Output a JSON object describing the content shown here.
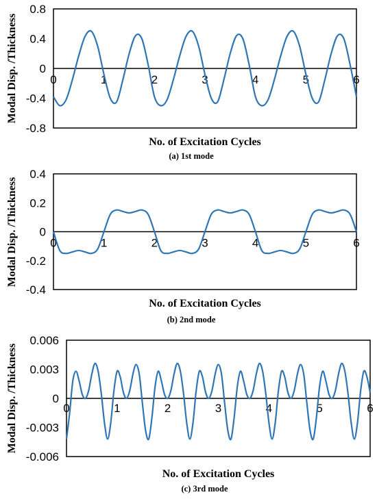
{
  "chart_data": [
    {
      "type": "line",
      "xlabel": "No. of Excitation Cycles",
      "ylabel": "Modal Disp. /Thickness",
      "caption": "(a) 1st mode",
      "xlim": [
        0,
        6
      ],
      "ylim": [
        -0.8,
        0.8
      ],
      "xticks": [
        "0",
        "1",
        "2",
        "3",
        "4",
        "5",
        "6"
      ],
      "yticks": [
        "0.8",
        "0.4",
        "0",
        "-0.4",
        "-0.8"
      ],
      "grid": false,
      "line_color": "#2e75b6",
      "series": [
        {
          "x": [
            0,
            0.125,
            0.25,
            0.375,
            0.5,
            0.625,
            0.75,
            0.875,
            1,
            1.125,
            1.25,
            1.375,
            1.5,
            1.625,
            1.75,
            1.875,
            2,
            2.125,
            2.25,
            2.375,
            2.5,
            2.625,
            2.75,
            2.875,
            3,
            3.125,
            3.25,
            3.375,
            3.5,
            3.625,
            3.75,
            3.875,
            4,
            4.125,
            4.25,
            4.375,
            4.5,
            4.625,
            4.75,
            4.875,
            5,
            5.125,
            5.25,
            5.375,
            5.5,
            5.625,
            5.75,
            5.875,
            6
          ],
          "y": [
            -0.38,
            -0.5,
            -0.42,
            -0.15,
            0.17,
            0.43,
            0.5,
            0.3,
            -0.08,
            -0.4,
            -0.45,
            -0.15,
            0.2,
            0.44,
            0.4,
            0.05,
            -0.38,
            -0.5,
            -0.42,
            -0.15,
            0.17,
            0.43,
            0.5,
            0.3,
            -0.08,
            -0.4,
            -0.45,
            -0.15,
            0.2,
            0.44,
            0.4,
            0.05,
            -0.38,
            -0.5,
            -0.42,
            -0.15,
            0.17,
            0.43,
            0.5,
            0.3,
            -0.08,
            -0.4,
            -0.45,
            -0.15,
            0.2,
            0.44,
            0.4,
            0.05,
            -0.38
          ]
        }
      ]
    },
    {
      "type": "line",
      "xlabel": "No. of Excitation Cycles",
      "ylabel": "Modal Disp. /Thickness",
      "caption": "(b) 2nd mode",
      "xlim": [
        0,
        6
      ],
      "ylim": [
        -0.4,
        0.4
      ],
      "xticks": [
        "0",
        "1",
        "2",
        "3",
        "4",
        "5",
        "6"
      ],
      "yticks": [
        "0.4",
        "0.2",
        "0",
        "-0.2",
        "-0.4"
      ],
      "grid": false,
      "line_color": "#2e75b6",
      "series": [
        {
          "x": [
            0,
            0.125,
            0.25,
            0.375,
            0.5,
            0.625,
            0.75,
            0.875,
            1,
            1.125,
            1.25,
            1.375,
            1.5,
            1.625,
            1.75,
            1.875,
            2,
            2.125,
            2.25,
            2.375,
            2.5,
            2.625,
            2.75,
            2.875,
            3,
            3.125,
            3.25,
            3.375,
            3.5,
            3.625,
            3.75,
            3.875,
            4,
            4.125,
            4.25,
            4.375,
            4.5,
            4.625,
            4.75,
            4.875,
            5,
            5.125,
            5.25,
            5.375,
            5.5,
            5.625,
            5.75,
            5.875,
            6
          ],
          "y": [
            0,
            -0.13,
            -0.15,
            -0.14,
            -0.13,
            -0.14,
            -0.15,
            -0.12,
            0,
            0.12,
            0.15,
            0.14,
            0.13,
            0.14,
            0.15,
            0.12,
            0,
            -0.13,
            -0.15,
            -0.14,
            -0.13,
            -0.14,
            -0.15,
            -0.12,
            0,
            0.12,
            0.15,
            0.14,
            0.13,
            0.14,
            0.15,
            0.12,
            0,
            -0.13,
            -0.15,
            -0.14,
            -0.13,
            -0.14,
            -0.15,
            -0.12,
            0,
            0.12,
            0.15,
            0.14,
            0.13,
            0.14,
            0.15,
            0.12,
            0
          ]
        }
      ]
    },
    {
      "type": "line",
      "xlabel": "No. of Excitation Cycles",
      "ylabel": "Modal Disp. /Thickness",
      "caption": "(c) 3rd mode",
      "xlim": [
        0,
        6
      ],
      "ylim": [
        -0.006,
        0.006
      ],
      "xticks": [
        "0",
        "1",
        "2",
        "3",
        "4",
        "5",
        "6"
      ],
      "yticks": [
        "0.006",
        "0.003",
        "0",
        "-0.003",
        "-0.006"
      ],
      "grid": false,
      "line_color": "#2e75b6",
      "series": [
        {
          "x": [
            0,
            0.0625,
            0.125,
            0.1875,
            0.25,
            0.3125,
            0.375,
            0.4375,
            0.5,
            0.5625,
            0.625,
            0.6875,
            0.75,
            0.8125,
            0.875,
            0.9375,
            1,
            1.0625,
            1.125,
            1.1875,
            1.25,
            1.3125,
            1.375,
            1.4375,
            1.5,
            1.5625,
            1.625,
            1.6875,
            1.75,
            1.8125,
            1.875,
            1.9375,
            2,
            2.0625,
            2.125,
            2.1875,
            2.25,
            2.3125,
            2.375,
            2.4375,
            2.5,
            2.5625,
            2.625,
            2.6875,
            2.75,
            2.8125,
            2.875,
            2.9375,
            3,
            3.0625,
            3.125,
            3.1875,
            3.25,
            3.3125,
            3.375,
            3.4375,
            3.5,
            3.5625,
            3.625,
            3.6875,
            3.75,
            3.8125,
            3.875,
            3.9375,
            4,
            4.0625,
            4.125,
            4.1875,
            4.25,
            4.3125,
            4.375,
            4.4375,
            4.5,
            4.5625,
            4.625,
            4.6875,
            4.75,
            4.8125,
            4.875,
            4.9375,
            5,
            5.0625,
            5.125,
            5.1875,
            5.25,
            5.3125,
            5.375,
            5.4375,
            5.5,
            5.5625,
            5.625,
            5.6875,
            5.75,
            5.8125,
            5.875,
            5.9375,
            6
          ],
          "y": [
            -0.0042,
            -0.0015,
            0.0018,
            0.0028,
            0.0018,
            0.0004,
            0,
            0.0008,
            0.0025,
            0.0036,
            0.0028,
            0.0005,
            -0.0025,
            -0.0042,
            -0.0025,
            0.0008,
            0.0028,
            0.0022,
            0.0006,
            0,
            0.0008,
            0.0025,
            0.0035,
            0.0025,
            -0.0005,
            -0.0033,
            -0.0042,
            -0.002,
            0.0012,
            0.0028,
            0.0018,
            0.0004,
            0,
            0.0008,
            0.0025,
            0.0036,
            0.0028,
            0.0005,
            -0.0025,
            -0.0042,
            -0.0025,
            0.0008,
            0.0028,
            0.0022,
            0.0006,
            0,
            0.0008,
            0.0025,
            0.0035,
            0.0025,
            -0.0005,
            -0.0033,
            -0.0042,
            -0.002,
            0.0012,
            0.0028,
            0.0018,
            0.0004,
            0,
            0.0008,
            0.0025,
            0.0036,
            0.0028,
            0.0005,
            -0.0025,
            -0.0042,
            -0.0025,
            0.0008,
            0.0028,
            0.0022,
            0.0006,
            0,
            0.0008,
            0.0025,
            0.0035,
            0.0025,
            -0.0005,
            -0.0033,
            -0.0042,
            -0.002,
            0.0012,
            0.0028,
            0.0018,
            0.0004,
            0,
            0.0008,
            0.0025,
            0.0036,
            0.0028,
            0.0005,
            -0.0025,
            -0.0042,
            -0.0025,
            0.0008,
            0.0028,
            0.0022,
            0.0006
          ]
        }
      ]
    }
  ]
}
